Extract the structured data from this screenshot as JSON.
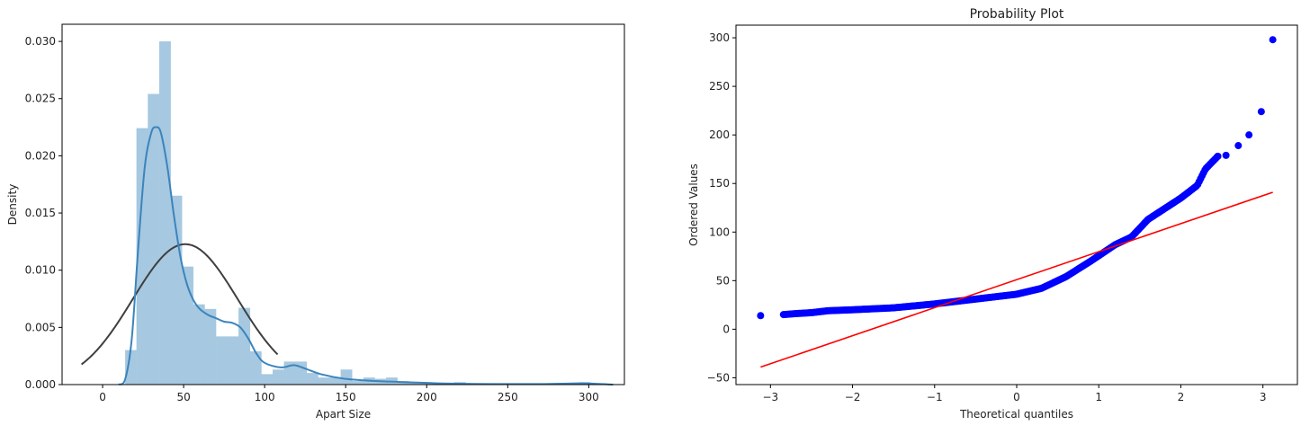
{
  "chart_data": [
    {
      "type": "histogram",
      "title": "",
      "xlabel": "Apart Size",
      "ylabel": "Density",
      "xlim": [
        -25,
        322
      ],
      "ylim": [
        0,
        0.0315
      ],
      "xticks": [
        0,
        50,
        100,
        150,
        200,
        250,
        300
      ],
      "xtick_labels": [
        "0",
        "50",
        "100",
        "150",
        "200",
        "250",
        "300"
      ],
      "yticks": [
        0.0,
        0.005,
        0.01,
        0.015,
        0.02,
        0.025,
        0.03
      ],
      "ytick_labels": [
        "0.000",
        "0.005",
        "0.010",
        "0.015",
        "0.020",
        "0.025",
        "0.030"
      ],
      "grid": false,
      "bar_color": "#a6c8e0",
      "kde_color": "#3b84bd",
      "normal_fit_color": "#3f3f3f",
      "bin_width": 7,
      "bins": [
        {
          "x0": 14,
          "density": 0.003
        },
        {
          "x0": 21,
          "density": 0.0224
        },
        {
          "x0": 28,
          "density": 0.0254
        },
        {
          "x0": 35,
          "density": 0.03
        },
        {
          "x0": 42,
          "density": 0.0165
        },
        {
          "x0": 49,
          "density": 0.0103
        },
        {
          "x0": 56,
          "density": 0.007
        },
        {
          "x0": 63,
          "density": 0.0066
        },
        {
          "x0": 70,
          "density": 0.0042
        },
        {
          "x0": 77,
          "density": 0.0042
        },
        {
          "x0": 84,
          "density": 0.0067
        },
        {
          "x0": 91,
          "density": 0.0029
        },
        {
          "x0": 98,
          "density": 0.0009
        },
        {
          "x0": 105,
          "density": 0.0013
        },
        {
          "x0": 112,
          "density": 0.002
        },
        {
          "x0": 119,
          "density": 0.002
        },
        {
          "x0": 126,
          "density": 0.001
        },
        {
          "x0": 133,
          "density": 0.0006
        },
        {
          "x0": 140,
          "density": 0.0006
        },
        {
          "x0": 147,
          "density": 0.0013
        },
        {
          "x0": 154,
          "density": 0.0003
        },
        {
          "x0": 161,
          "density": 0.0006
        },
        {
          "x0": 168,
          "density": 0.0005
        },
        {
          "x0": 175,
          "density": 0.0006
        },
        {
          "x0": 182,
          "density": 0.0003
        },
        {
          "x0": 189,
          "density": 0.0002
        },
        {
          "x0": 196,
          "density": 0.0002
        },
        {
          "x0": 203,
          "density": 0.0001
        },
        {
          "x0": 210,
          "density": 0.0001
        },
        {
          "x0": 217,
          "density": 0.0002
        },
        {
          "x0": 294,
          "density": 0.0002
        }
      ],
      "kde": [
        {
          "x": 10,
          "y": 0.0
        },
        {
          "x": 14,
          "y": 0.0005
        },
        {
          "x": 18,
          "y": 0.004
        },
        {
          "x": 22,
          "y": 0.012
        },
        {
          "x": 26,
          "y": 0.019
        },
        {
          "x": 30,
          "y": 0.022
        },
        {
          "x": 33,
          "y": 0.0225
        },
        {
          "x": 36,
          "y": 0.022
        },
        {
          "x": 40,
          "y": 0.019
        },
        {
          "x": 44,
          "y": 0.0148
        },
        {
          "x": 48,
          "y": 0.0112
        },
        {
          "x": 52,
          "y": 0.0088
        },
        {
          "x": 56,
          "y": 0.0074
        },
        {
          "x": 60,
          "y": 0.0066
        },
        {
          "x": 65,
          "y": 0.0061
        },
        {
          "x": 70,
          "y": 0.0058
        },
        {
          "x": 75,
          "y": 0.0055
        },
        {
          "x": 80,
          "y": 0.0054
        },
        {
          "x": 85,
          "y": 0.005
        },
        {
          "x": 90,
          "y": 0.004
        },
        {
          "x": 95,
          "y": 0.0027
        },
        {
          "x": 100,
          "y": 0.0019
        },
        {
          "x": 110,
          "y": 0.0015
        },
        {
          "x": 118,
          "y": 0.0017
        },
        {
          "x": 125,
          "y": 0.0014
        },
        {
          "x": 135,
          "y": 0.0009
        },
        {
          "x": 150,
          "y": 0.0005
        },
        {
          "x": 170,
          "y": 0.0003
        },
        {
          "x": 190,
          "y": 0.0002
        },
        {
          "x": 210,
          "y": 0.0001
        },
        {
          "x": 240,
          "y": 5e-05
        },
        {
          "x": 270,
          "y": 5e-05
        },
        {
          "x": 290,
          "y": 0.0001
        },
        {
          "x": 300,
          "y": 0.0001
        },
        {
          "x": 315,
          "y": 0.0
        }
      ],
      "normal_fit": {
        "mean": 51,
        "std": 32.5,
        "x_range": [
          -13,
          108
        ]
      }
    },
    {
      "type": "scatter",
      "title": "Probability Plot",
      "xlabel": "Theoretical quantiles",
      "ylabel": "Ordered Values",
      "xlim": [
        -3.42,
        3.42
      ],
      "ylim": [
        -57,
        313
      ],
      "xticks": [
        -3,
        -2,
        -1,
        0,
        1,
        2,
        3
      ],
      "xtick_labels": [
        "−3",
        "−2",
        "−1",
        "0",
        "1",
        "2",
        "3"
      ],
      "yticks": [
        -50,
        0,
        50,
        100,
        150,
        200,
        250,
        300
      ],
      "ytick_labels": [
        "−50",
        "0",
        "50",
        "100",
        "150",
        "200",
        "250",
        "300"
      ],
      "grid": false,
      "point_color": "#0000ff",
      "line_color": "#ff0000",
      "fit_line": {
        "x": [
          -3.12,
          3.12
        ],
        "y": [
          -39,
          141
        ]
      },
      "curve_knots": [
        {
          "q": -3.12,
          "v": 14
        },
        {
          "q": -2.85,
          "v": 15
        },
        {
          "q": -2.7,
          "v": 16
        },
        {
          "q": -2.5,
          "v": 17
        },
        {
          "q": -2.3,
          "v": 19
        },
        {
          "q": -2.0,
          "v": 20
        },
        {
          "q": -1.5,
          "v": 22
        },
        {
          "q": -1.0,
          "v": 26
        },
        {
          "q": -0.5,
          "v": 31
        },
        {
          "q": 0.0,
          "v": 36
        },
        {
          "q": 0.3,
          "v": 42
        },
        {
          "q": 0.6,
          "v": 54
        },
        {
          "q": 0.9,
          "v": 70
        },
        {
          "q": 1.2,
          "v": 87
        },
        {
          "q": 1.4,
          "v": 95
        },
        {
          "q": 1.6,
          "v": 113
        },
        {
          "q": 1.8,
          "v": 124
        },
        {
          "q": 2.0,
          "v": 135
        },
        {
          "q": 2.2,
          "v": 148
        },
        {
          "q": 2.3,
          "v": 165
        },
        {
          "q": 2.45,
          "v": 178
        },
        {
          "q": 2.6,
          "v": 182
        }
      ],
      "tail_points": [
        {
          "q": 2.45,
          "v": 178
        },
        {
          "q": 2.55,
          "v": 179
        },
        {
          "q": 2.7,
          "v": 189
        },
        {
          "q": 2.83,
          "v": 200
        },
        {
          "q": 2.98,
          "v": 224
        },
        {
          "q": 3.12,
          "v": 298
        }
      ]
    }
  ]
}
